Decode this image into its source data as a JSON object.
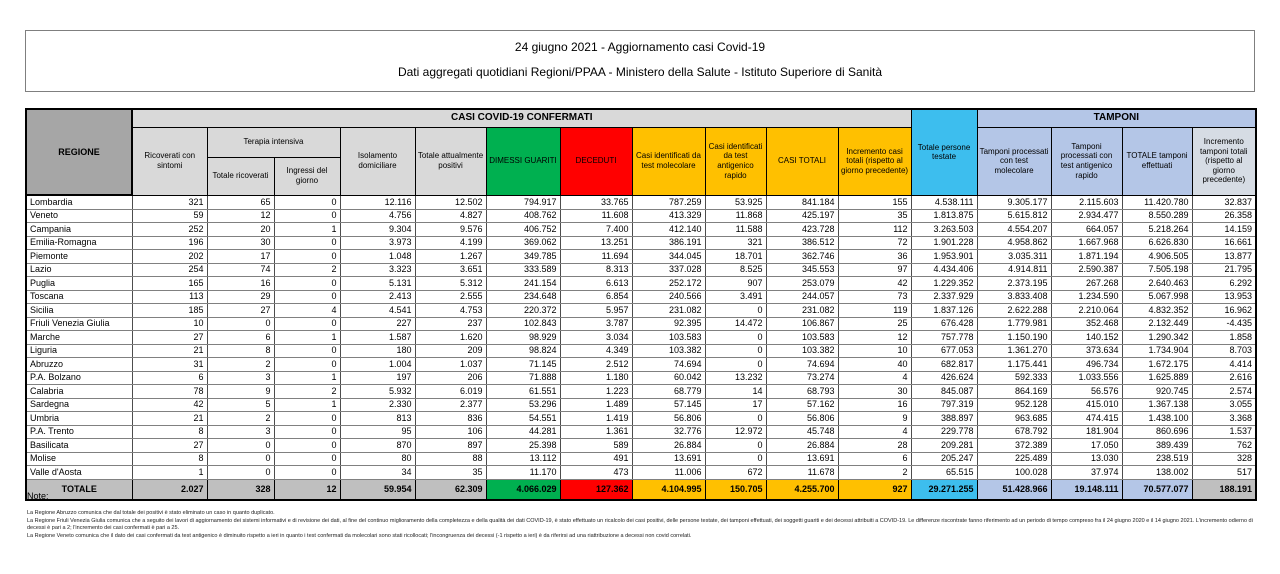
{
  "title": {
    "line1": "24 giugno 2021 - Aggiornamento casi Covid-19",
    "line2": "Dati aggregati quotidiani Regioni/PPAA - Ministero della Salute - Istituto Superiore di Sanità"
  },
  "table": {
    "group_headers": {
      "casi": "CASI COVID-19 CONFERMATI",
      "tamponi": "TAMPONI",
      "terapia": "Terapia intensiva"
    },
    "columns": {
      "regione": "REGIONE",
      "ricoverati": "Ricoverati con sintomi",
      "ti_totale": "Totale ricoverati",
      "ti_ingressi": "Ingressi del giorno",
      "isolamento": "Isolamento domiciliare",
      "attualmente_positivi": "Totale attualmente positivi",
      "dimessi": "DIMESSI GUARITI",
      "deceduti": "DECEDUTI",
      "casi_molecolare": "Casi identificati da test molecolare",
      "casi_antigenico": "Casi identificati da test antigenico rapido",
      "casi_totali": "CASI TOTALI",
      "incremento_casi": "Incremento casi totali (rispetto al giorno precedente)",
      "persone_testate": "Totale persone testate",
      "tamponi_molecolare": "Tamponi processati con test molecolare",
      "tamponi_antigenico": "Tamponi processati con test antigenico rapido",
      "tamponi_totale": "TOTALE tamponi effettuati",
      "incremento_tamponi": "Incremento tamponi totali (rispetto al giorno precedente)"
    },
    "rows": [
      {
        "regione": "Lombardia",
        "values": [
          "321",
          "65",
          "0",
          "12.116",
          "12.502",
          "794.917",
          "33.765",
          "787.259",
          "53.925",
          "841.184",
          "155",
          "4.538.111",
          "9.305.177",
          "2.115.603",
          "11.420.780",
          "32.837"
        ]
      },
      {
        "regione": "Veneto",
        "values": [
          "59",
          "12",
          "0",
          "4.756",
          "4.827",
          "408.762",
          "11.608",
          "413.329",
          "11.868",
          "425.197",
          "35",
          "1.813.875",
          "5.615.812",
          "2.934.477",
          "8.550.289",
          "26.358"
        ]
      },
      {
        "regione": "Campania",
        "values": [
          "252",
          "20",
          "1",
          "9.304",
          "9.576",
          "406.752",
          "7.400",
          "412.140",
          "11.588",
          "423.728",
          "112",
          "3.263.503",
          "4.554.207",
          "664.057",
          "5.218.264",
          "14.159"
        ]
      },
      {
        "regione": "Emilia-Romagna",
        "values": [
          "196",
          "30",
          "0",
          "3.973",
          "4.199",
          "369.062",
          "13.251",
          "386.191",
          "321",
          "386.512",
          "72",
          "1.901.228",
          "4.958.862",
          "1.667.968",
          "6.626.830",
          "16.661"
        ]
      },
      {
        "regione": "Piemonte",
        "values": [
          "202",
          "17",
          "0",
          "1.048",
          "1.267",
          "349.785",
          "11.694",
          "344.045",
          "18.701",
          "362.746",
          "36",
          "1.953.901",
          "3.035.311",
          "1.871.194",
          "4.906.505",
          "13.877"
        ]
      },
      {
        "regione": "Lazio",
        "values": [
          "254",
          "74",
          "2",
          "3.323",
          "3.651",
          "333.589",
          "8.313",
          "337.028",
          "8.525",
          "345.553",
          "97",
          "4.434.406",
          "4.914.811",
          "2.590.387",
          "7.505.198",
          "21.795"
        ]
      },
      {
        "regione": "Puglia",
        "values": [
          "165",
          "16",
          "0",
          "5.131",
          "5.312",
          "241.154",
          "6.613",
          "252.172",
          "907",
          "253.079",
          "42",
          "1.229.352",
          "2.373.195",
          "267.268",
          "2.640.463",
          "6.292"
        ]
      },
      {
        "regione": "Toscana",
        "values": [
          "113",
          "29",
          "0",
          "2.413",
          "2.555",
          "234.648",
          "6.854",
          "240.566",
          "3.491",
          "244.057",
          "73",
          "2.337.929",
          "3.833.408",
          "1.234.590",
          "5.067.998",
          "13.953"
        ]
      },
      {
        "regione": "Sicilia",
        "values": [
          "185",
          "27",
          "4",
          "4.541",
          "4.753",
          "220.372",
          "5.957",
          "231.082",
          "0",
          "231.082",
          "119",
          "1.837.126",
          "2.622.288",
          "2.210.064",
          "4.832.352",
          "16.962"
        ]
      },
      {
        "regione": "Friuli Venezia Giulia",
        "values": [
          "10",
          "0",
          "0",
          "227",
          "237",
          "102.843",
          "3.787",
          "92.395",
          "14.472",
          "106.867",
          "25",
          "676.428",
          "1.779.981",
          "352.468",
          "2.132.449",
          "-4.435"
        ]
      },
      {
        "regione": "Marche",
        "values": [
          "27",
          "6",
          "1",
          "1.587",
          "1.620",
          "98.929",
          "3.034",
          "103.583",
          "0",
          "103.583",
          "12",
          "757.778",
          "1.150.190",
          "140.152",
          "1.290.342",
          "1.858"
        ]
      },
      {
        "regione": "Liguria",
        "values": [
          "21",
          "8",
          "0",
          "180",
          "209",
          "98.824",
          "4.349",
          "103.382",
          "0",
          "103.382",
          "10",
          "677.053",
          "1.361.270",
          "373.634",
          "1.734.904",
          "8.703"
        ]
      },
      {
        "regione": "Abruzzo",
        "values": [
          "31",
          "2",
          "0",
          "1.004",
          "1.037",
          "71.145",
          "2.512",
          "74.694",
          "0",
          "74.694",
          "40",
          "682.817",
          "1.175.441",
          "496.734",
          "1.672.175",
          "4.414"
        ]
      },
      {
        "regione": "P.A. Bolzano",
        "values": [
          "6",
          "3",
          "1",
          "197",
          "206",
          "71.888",
          "1.180",
          "60.042",
          "13.232",
          "73.274",
          "4",
          "426.624",
          "592.333",
          "1.033.556",
          "1.625.889",
          "2.616"
        ]
      },
      {
        "regione": "Calabria",
        "values": [
          "78",
          "9",
          "2",
          "5.932",
          "6.019",
          "61.551",
          "1.223",
          "68.779",
          "14",
          "68.793",
          "30",
          "845.087",
          "864.169",
          "56.576",
          "920.745",
          "2.574"
        ]
      },
      {
        "regione": "Sardegna",
        "values": [
          "42",
          "5",
          "1",
          "2.330",
          "2.377",
          "53.296",
          "1.489",
          "57.145",
          "17",
          "57.162",
          "16",
          "797.319",
          "952.128",
          "415.010",
          "1.367.138",
          "3.055"
        ]
      },
      {
        "regione": "Umbria",
        "values": [
          "21",
          "2",
          "0",
          "813",
          "836",
          "54.551",
          "1.419",
          "56.806",
          "0",
          "56.806",
          "9",
          "388.897",
          "963.685",
          "474.415",
          "1.438.100",
          "3.368"
        ]
      },
      {
        "regione": "P.A. Trento",
        "values": [
          "8",
          "3",
          "0",
          "95",
          "106",
          "44.281",
          "1.361",
          "32.776",
          "12.972",
          "45.748",
          "4",
          "229.778",
          "678.792",
          "181.904",
          "860.696",
          "1.537"
        ]
      },
      {
        "regione": "Basilicata",
        "values": [
          "27",
          "0",
          "0",
          "870",
          "897",
          "25.398",
          "589",
          "26.884",
          "0",
          "26.884",
          "28",
          "209.281",
          "372.389",
          "17.050",
          "389.439",
          "762"
        ]
      },
      {
        "regione": "Molise",
        "values": [
          "8",
          "0",
          "0",
          "80",
          "88",
          "13.112",
          "491",
          "13.691",
          "0",
          "13.691",
          "6",
          "205.247",
          "225.489",
          "13.030",
          "238.519",
          "328"
        ]
      },
      {
        "regione": "Valle d'Aosta",
        "values": [
          "1",
          "0",
          "0",
          "34",
          "35",
          "11.170",
          "473",
          "11.006",
          "672",
          "11.678",
          "2",
          "65.515",
          "100.028",
          "37.974",
          "138.002",
          "517"
        ]
      }
    ],
    "total_row": {
      "regione": "TOTALE",
      "values": [
        "2.027",
        "328",
        "12",
        "59.954",
        "62.309",
        "4.066.029",
        "127.362",
        "4.104.995",
        "150.705",
        "4.255.700",
        "927",
        "29.271.255",
        "51.428.966",
        "19.148.111",
        "70.577.077",
        "188.191"
      ]
    }
  },
  "notes": {
    "label": "Note:",
    "items": [
      "La Regione Abruzzo comunica che dal totale dei positivi è stato eliminato un caso in quanto duplicato.",
      "La Regione Friuli Venezia Giulia comunica che a seguito dei lavori di aggiornamento dei sistemi informativi e di revisione dei dati, al fine del continuo miglioramento della completezza e della qualità dei dati COVID-19, è stato effettuato un ricalcolo dei casi positivi, delle persone testate, dei tamponi effettuati, dei soggetti guariti e dei decessi attribuiti a COVID-19. Le differenze riscontrate fanno riferimento ad un periodo di tempo compreso fra il 24 giugno 2020 e il 14 giugno 2021. L'incremento odierno di decessi è pari a 2; l'incremento dei casi confermati è pari a 25.",
      "La Regione Veneto comunica che il dato dei casi confermati da test antigenico è diminuito rispetto a ieri in quanto i test confermati da molecolari sono stati ricollocati; l'incongruenza dei decessi (-1 rispetto a ieri) è da riferirsi ad una riattribuzione a decessi non covid correlati."
    ]
  },
  "colors": {
    "header-gray": "#D9D9D9",
    "regione-gray": "#A6A6A6",
    "green": "#00B050",
    "red": "#FF0000",
    "yellow": "#FFC000",
    "blue": "#3DBEEE",
    "ltblue": "#B4C6E7",
    "grayblue": "#D6DCE4",
    "total-gray": "#BFBFBF"
  }
}
